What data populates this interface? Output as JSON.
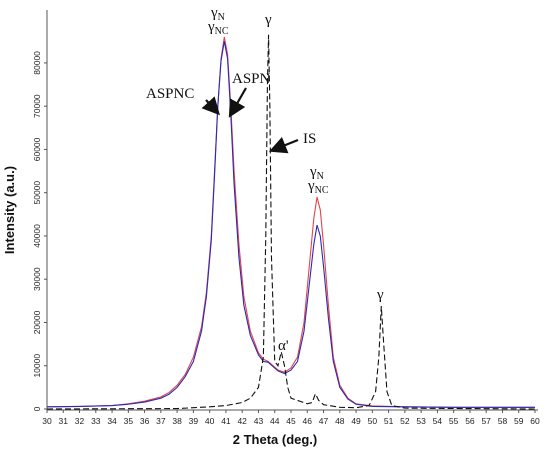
{
  "chart_data": {
    "type": "line",
    "xlabel": "2 Theta (deg.)",
    "ylabel": "Intensity (a.u.)",
    "xlim": [
      30,
      60
    ],
    "xticks": [
      30,
      31,
      32,
      33,
      34,
      35,
      36,
      37,
      38,
      39,
      40,
      41,
      42,
      43,
      44,
      45,
      46,
      47,
      48,
      49,
      50,
      51,
      52,
      53,
      54,
      55,
      56,
      57,
      58,
      59,
      60
    ],
    "ylim": [
      0,
      92000
    ],
    "yticks": [
      0,
      10000,
      20000,
      30000,
      40000,
      50000,
      60000,
      70000,
      80000
    ],
    "series": [
      {
        "name": "ASPN",
        "color": "#e0454a",
        "dash": "none",
        "x": [
          30,
          32,
          34,
          35,
          36,
          37,
          37.5,
          38,
          38.5,
          39,
          39.5,
          39.8,
          40.1,
          40.3,
          40.5,
          40.7,
          40.9,
          41.1,
          41.3,
          41.5,
          41.8,
          42.1,
          42.5,
          43,
          43.3,
          43.6,
          43.9,
          44.2,
          44.6,
          45,
          45.4,
          45.8,
          46.1,
          46.4,
          46.6,
          46.8,
          47,
          47.3,
          47.6,
          48,
          48.5,
          49,
          50,
          52,
          55,
          60
        ],
        "values": [
          500,
          600,
          800,
          1200,
          1800,
          2800,
          3800,
          5500,
          8000,
          12000,
          19000,
          27000,
          40000,
          55000,
          70000,
          81000,
          86000,
          82000,
          70000,
          55000,
          38000,
          26000,
          18000,
          13000,
          11500,
          11000,
          10000,
          9000,
          8500,
          9500,
          12000,
          20000,
          32000,
          44000,
          49000,
          46000,
          38000,
          24000,
          12000,
          5500,
          2500,
          1200,
          700,
          500,
          400,
          400
        ]
      },
      {
        "name": "ASPNC",
        "color": "#2b2bb8",
        "dash": "none",
        "x": [
          30,
          32,
          34,
          35,
          36,
          37,
          37.5,
          38,
          38.5,
          39,
          39.5,
          39.8,
          40.1,
          40.3,
          40.5,
          40.7,
          40.9,
          41.1,
          41.3,
          41.5,
          41.8,
          42.1,
          42.5,
          43,
          43.3,
          43.6,
          43.9,
          44.2,
          44.6,
          45,
          45.4,
          45.8,
          46.1,
          46.4,
          46.6,
          46.8,
          47,
          47.3,
          47.6,
          48,
          48.5,
          49,
          50,
          52,
          55,
          60
        ],
        "values": [
          500,
          600,
          800,
          1100,
          1600,
          2500,
          3400,
          5000,
          7500,
          11000,
          18000,
          26000,
          39000,
          54000,
          70000,
          80500,
          85000,
          81000,
          68000,
          52000,
          35000,
          24000,
          17000,
          12500,
          11000,
          10800,
          9800,
          8800,
          8200,
          9000,
          11000,
          18000,
          28000,
          38000,
          42500,
          40000,
          33000,
          21000,
          11000,
          5000,
          2300,
          1100,
          600,
          500,
          400,
          400
        ]
      },
      {
        "name": "IS",
        "color": "#111111",
        "dash": "6 3",
        "x": [
          30,
          38,
          39,
          40,
          41,
          42,
          42.5,
          43,
          43.3,
          43.45,
          43.55,
          43.62,
          43.7,
          43.8,
          44,
          44.2,
          44.4,
          44.6,
          44.8,
          45,
          46,
          46.3,
          46.5,
          46.7,
          47,
          48,
          49,
          49.8,
          50.2,
          50.4,
          50.55,
          50.7,
          50.9,
          51.2,
          52,
          60
        ],
        "values": [
          0,
          100,
          300,
          500,
          800,
          1500,
          2500,
          5000,
          12000,
          40000,
          75000,
          86500,
          70000,
          35000,
          11000,
          10000,
          13200,
          10000,
          5000,
          2500,
          1200,
          1500,
          3500,
          2000,
          1000,
          400,
          300,
          800,
          4000,
          12000,
          23800,
          15000,
          4000,
          800,
          200,
          0
        ]
      }
    ],
    "annotations": [
      {
        "text": "γ",
        "sub": "N"
      },
      {
        "text": "γ",
        "sub": "NC"
      },
      {
        "text": "γ"
      },
      {
        "text": "γ",
        "sub": "N"
      },
      {
        "text": "γ",
        "sub": "NC"
      },
      {
        "text": "α'"
      },
      {
        "text": "γ"
      }
    ]
  }
}
